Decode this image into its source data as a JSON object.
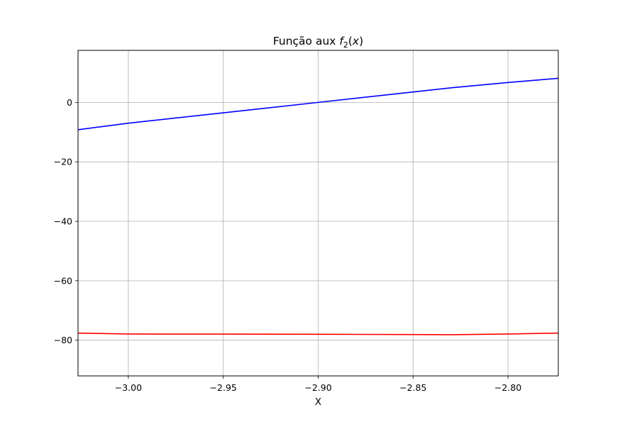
{
  "chart_data": {
    "type": "line",
    "title_prefix": "Função aux ",
    "title_func": "f",
    "title_sub": "2",
    "title_arg": "x",
    "xlabel": "X",
    "ylabel": "",
    "xlim": [
      -3.0265,
      -2.7735
    ],
    "ylim": [
      -92,
      17.5
    ],
    "xticks": [
      -3.0,
      -2.95,
      -2.9,
      -2.85,
      -2.8
    ],
    "xtick_labels": [
      "−3.00",
      "−2.95",
      "−2.90",
      "−2.85",
      "−2.80"
    ],
    "yticks": [
      0,
      -20,
      -40,
      -60,
      -80
    ],
    "ytick_labels": [
      "0",
      "−20",
      "−40",
      "−60",
      "−80"
    ],
    "grid": true,
    "series": [
      {
        "color": "#0000ff",
        "x": [
          -3.0265,
          -3.0,
          -2.95,
          -2.9,
          -2.85,
          -2.83,
          -2.8,
          -2.7735
        ],
        "y": [
          -9.2,
          -7.0,
          -3.5,
          0.0,
          3.5,
          4.9,
          6.7,
          8.1
        ]
      },
      {
        "color": "#ff0000",
        "x": [
          -3.0265,
          -3.0,
          -2.95,
          -2.9,
          -2.85,
          -2.83,
          -2.8,
          -2.7735
        ],
        "y": [
          -77.6,
          -77.9,
          -77.95,
          -78.0,
          -78.1,
          -78.15,
          -77.9,
          -77.6
        ]
      }
    ]
  }
}
